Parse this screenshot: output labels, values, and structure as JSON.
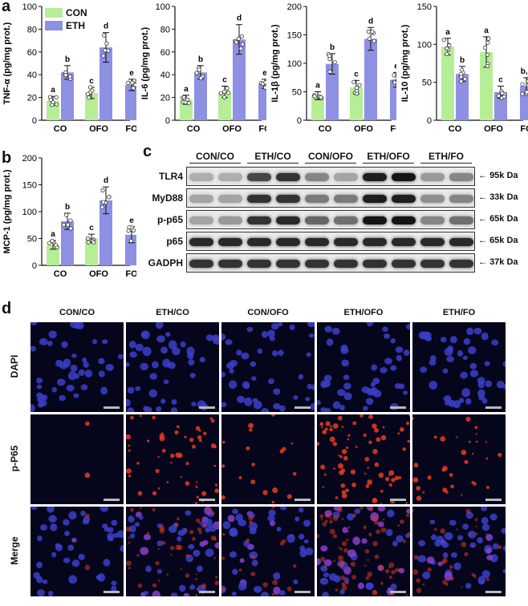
{
  "panel_labels": {
    "a": "a",
    "b": "b",
    "c": "c",
    "d": "d"
  },
  "legend": {
    "con": "CON",
    "eth": "ETH",
    "con_color": "#b6ee95",
    "eth_color": "#8d90e3"
  },
  "colors": {
    "con": "#b6ee95",
    "eth": "#8d90e3",
    "error": "#111111"
  },
  "chart_data": [
    {
      "type": "bar",
      "id": "tnf",
      "ylabel": "TNF-α (pg/mg prot.)",
      "ylim": [
        0,
        100
      ],
      "yticks": [
        0,
        20,
        40,
        60,
        80,
        100
      ],
      "groups": [
        "CO",
        "OFO",
        "FO"
      ],
      "bars": [
        {
          "g": 0,
          "s": "con",
          "v": 17,
          "err": 4,
          "letter": "a"
        },
        {
          "g": 0,
          "s": "eth",
          "v": 42,
          "err": 6,
          "letter": "b"
        },
        {
          "g": 1,
          "s": "con",
          "v": 24,
          "err": 5,
          "letter": "c"
        },
        {
          "g": 1,
          "s": "eth",
          "v": 64,
          "err": 13,
          "letter": "d"
        },
        {
          "g": 2,
          "s": "eth",
          "v": 31,
          "err": 5,
          "letter": "e"
        }
      ]
    },
    {
      "type": "bar",
      "id": "il6",
      "ylabel": "IL-6 (pg/mg prot.)",
      "ylim": [
        0,
        100
      ],
      "yticks": [
        0,
        20,
        40,
        60,
        80,
        100
      ],
      "groups": [
        "CO",
        "OFO",
        "FO"
      ],
      "bars": [
        {
          "g": 0,
          "s": "con",
          "v": 18,
          "err": 4,
          "letter": "a"
        },
        {
          "g": 0,
          "s": "eth",
          "v": 42,
          "err": 6,
          "letter": "b"
        },
        {
          "g": 1,
          "s": "con",
          "v": 25,
          "err": 5,
          "letter": "c"
        },
        {
          "g": 1,
          "s": "eth",
          "v": 71,
          "err": 13,
          "letter": "d"
        },
        {
          "g": 2,
          "s": "eth",
          "v": 32,
          "err": 4,
          "letter": "e"
        }
      ]
    },
    {
      "type": "bar",
      "id": "il1b",
      "ylabel": "IL-1β (pg/mg prot.)",
      "ylim": [
        0,
        200
      ],
      "yticks": [
        0,
        50,
        100,
        150,
        200
      ],
      "groups": [
        "CO",
        "OFO",
        "FO"
      ],
      "bars": [
        {
          "g": 0,
          "s": "con",
          "v": 43,
          "err": 7,
          "letter": "a"
        },
        {
          "g": 0,
          "s": "eth",
          "v": 99,
          "err": 18,
          "letter": "b"
        },
        {
          "g": 1,
          "s": "con",
          "v": 58,
          "err": 12,
          "letter": "c"
        },
        {
          "g": 1,
          "s": "eth",
          "v": 143,
          "err": 20,
          "letter": "d"
        },
        {
          "g": 2,
          "s": "eth",
          "v": 71,
          "err": 13,
          "letter": "e"
        }
      ]
    },
    {
      "type": "bar",
      "id": "il10",
      "ylabel": "IL-10 (pg/mg prot.)",
      "ylim": [
        0,
        150
      ],
      "yticks": [
        0,
        50,
        100,
        150
      ],
      "groups": [
        "CO",
        "OFO",
        "FO"
      ],
      "bars": [
        {
          "g": 0,
          "s": "con",
          "v": 97,
          "err": 11,
          "letter": "a"
        },
        {
          "g": 0,
          "s": "eth",
          "v": 61,
          "err": 10,
          "letter": "b"
        },
        {
          "g": 1,
          "s": "con",
          "v": 90,
          "err": 20,
          "letter": "a"
        },
        {
          "g": 1,
          "s": "eth",
          "v": 37,
          "err": 8,
          "letter": "c"
        },
        {
          "g": 2,
          "s": "eth",
          "v": 45,
          "err": 11,
          "letter": "b,c"
        }
      ]
    },
    {
      "type": "bar",
      "id": "mcp1",
      "ylabel": "MCP-1 (pg/mg prot.)",
      "ylim": [
        0,
        200
      ],
      "yticks": [
        0,
        50,
        100,
        150,
        200
      ],
      "groups": [
        "CO",
        "OFO",
        "FO"
      ],
      "bars": [
        {
          "g": 0,
          "s": "con",
          "v": 38,
          "err": 8,
          "letter": "a"
        },
        {
          "g": 0,
          "s": "eth",
          "v": 82,
          "err": 15,
          "letter": "b"
        },
        {
          "g": 1,
          "s": "con",
          "v": 50,
          "err": 8,
          "letter": "c"
        },
        {
          "g": 1,
          "s": "eth",
          "v": 121,
          "err": 25,
          "letter": "d"
        },
        {
          "g": 2,
          "s": "eth",
          "v": 57,
          "err": 15,
          "letter": "e"
        }
      ]
    }
  ],
  "western_blot": {
    "groups": [
      "CON/CO",
      "ETH/CO",
      "CON/OFO",
      "ETH/OFO",
      "ETH/FO"
    ],
    "rows": [
      {
        "name": "TLR4",
        "size": "95k Da",
        "intensity": [
          0.25,
          0.25,
          0.75,
          0.85,
          0.45,
          0.3,
          0.95,
          1.0,
          0.35,
          0.45
        ]
      },
      {
        "name": "MyD88",
        "size": "33k Da",
        "intensity": [
          0.3,
          0.3,
          0.85,
          0.85,
          0.5,
          0.5,
          0.95,
          0.95,
          0.4,
          0.45
        ]
      },
      {
        "name": "p-p65",
        "size": "65k Da",
        "intensity": [
          0.3,
          0.35,
          0.85,
          0.9,
          0.6,
          0.55,
          1.0,
          1.0,
          0.45,
          0.55
        ]
      },
      {
        "name": "p65",
        "size": "65k Da",
        "intensity": [
          0.9,
          0.9,
          0.9,
          0.9,
          0.9,
          0.9,
          0.9,
          0.9,
          0.9,
          0.9
        ]
      },
      {
        "name": "GADPH",
        "size": "37k Da",
        "intensity": [
          0.85,
          0.85,
          0.85,
          0.85,
          0.85,
          0.85,
          0.85,
          0.85,
          0.85,
          0.85
        ]
      }
    ]
  },
  "immunofluorescence": {
    "columns": [
      "CON/CO",
      "ETH/CO",
      "CON/OFO",
      "ETH/OFO",
      "ETH/FO"
    ],
    "rows": [
      "DAPI",
      "p-P65",
      "Merge"
    ],
    "red_level": [
      0.02,
      0.55,
      0.2,
      0.8,
      0.35
    ]
  }
}
